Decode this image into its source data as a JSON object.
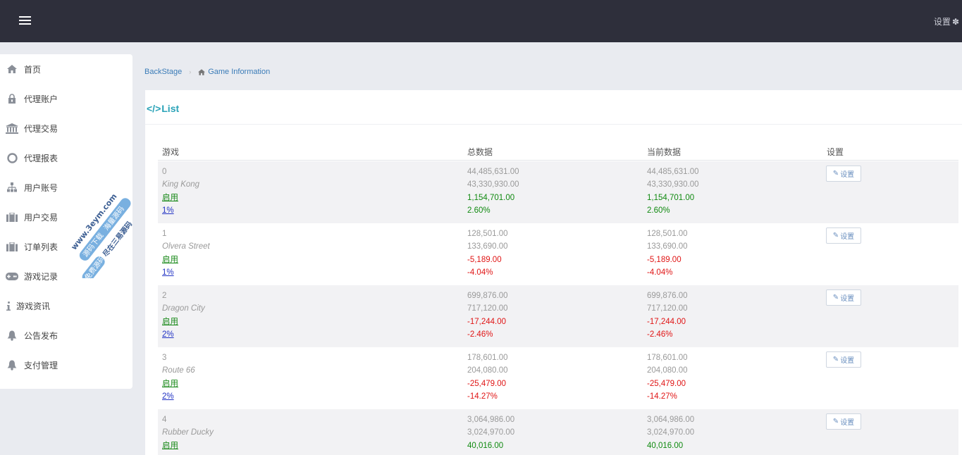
{
  "topbar": {
    "menu_icon": "hamburger-icon",
    "settings_label": "设置",
    "settings_icon": "gear-icon"
  },
  "sidebar": {
    "items": [
      {
        "label": "首页",
        "icon": "home-icon"
      },
      {
        "label": "代理账户",
        "icon": "lock-icon"
      },
      {
        "label": "代理交易",
        "icon": "bank-icon"
      },
      {
        "label": "代理报表",
        "icon": "lifebuoy-icon"
      },
      {
        "label": "用户账号",
        "icon": "sitemap-icon"
      },
      {
        "label": "用户交易",
        "icon": "briefcase-icon"
      },
      {
        "label": "订单列表",
        "icon": "briefcase-icon"
      },
      {
        "label": "游戏记录",
        "icon": "gamepad-icon"
      },
      {
        "label": "游戏资讯",
        "icon": "info-icon"
      },
      {
        "label": "公告发布",
        "icon": "bell-icon"
      },
      {
        "label": "支付管理",
        "icon": "bell-icon"
      }
    ]
  },
  "watermark": {
    "lines": [
      "www.3eym.com",
      "源码下载",
      "海量源码",
      "免费源码",
      "尽在三易源码"
    ]
  },
  "breadcrumb": {
    "root": "BackStage",
    "current": "Game Information",
    "current_icon": "home-icon"
  },
  "panel": {
    "title_icon": "code-icon",
    "title": "List"
  },
  "table": {
    "headers": {
      "game": "游戏",
      "total": "总数据",
      "current": "当前数据",
      "settings": "设置"
    },
    "settings_button_label": "设置",
    "settings_button_icon": "edit-icon",
    "rows": [
      {
        "id": "0",
        "name": "King Kong",
        "status": "启用",
        "rate": "1%",
        "total": {
          "in": "44,485,631.00",
          "out": "43,330,930.00",
          "profit": "1,154,701.00",
          "percent": "2.60%"
        },
        "current": {
          "in": "44,485,631.00",
          "out": "43,330,930.00",
          "profit": "1,154,701.00",
          "percent": "2.60%"
        },
        "sign": "pos"
      },
      {
        "id": "1",
        "name": "Olvera Street",
        "status": "启用",
        "rate": "1%",
        "total": {
          "in": "128,501.00",
          "out": "133,690.00",
          "profit": "-5,189.00",
          "percent": "-4.04%"
        },
        "current": {
          "in": "128,501.00",
          "out": "133,690.00",
          "profit": "-5,189.00",
          "percent": "-4.04%"
        },
        "sign": "neg"
      },
      {
        "id": "2",
        "name": "Dragon City",
        "status": "启用",
        "rate": "2%",
        "total": {
          "in": "699,876.00",
          "out": "717,120.00",
          "profit": "-17,244.00",
          "percent": "-2.46%"
        },
        "current": {
          "in": "699,876.00",
          "out": "717,120.00",
          "profit": "-17,244.00",
          "percent": "-2.46%"
        },
        "sign": "neg"
      },
      {
        "id": "3",
        "name": "Route 66",
        "status": "启用",
        "rate": "2%",
        "total": {
          "in": "178,601.00",
          "out": "204,080.00",
          "profit": "-25,479.00",
          "percent": "-14.27%"
        },
        "current": {
          "in": "178,601.00",
          "out": "204,080.00",
          "profit": "-25,479.00",
          "percent": "-14.27%"
        },
        "sign": "neg"
      },
      {
        "id": "4",
        "name": "Rubber Ducky",
        "status": "启用",
        "rate": "",
        "total": {
          "in": "3,064,986.00",
          "out": "3,024,970.00",
          "profit": "40,016.00",
          "percent": ""
        },
        "current": {
          "in": "3,064,986.00",
          "out": "3,024,970.00",
          "profit": "40,016.00",
          "percent": ""
        },
        "sign": "pos"
      }
    ]
  },
  "colors": {
    "topbar": "#2e2f3b",
    "accent": "#2aa3b8",
    "positive": "#108a10",
    "negative": "#e01515",
    "link": "#2233c4"
  }
}
